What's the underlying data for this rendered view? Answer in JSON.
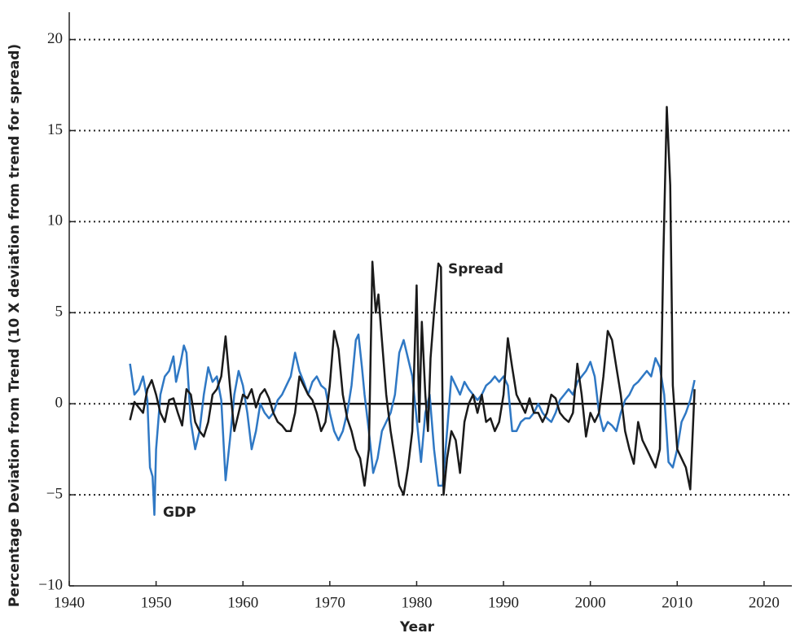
{
  "chart_data": {
    "type": "line",
    "xlabel": "Year",
    "ylabel": "Percentage Deviation from Trend (10 X deviation from trend for spread)",
    "xlim": [
      1940,
      2023.2
    ],
    "ylim": [
      -10,
      21.5
    ],
    "xticks": [
      1940,
      1950,
      1960,
      1970,
      1980,
      1990,
      2000,
      2010,
      2020
    ],
    "yticks": [
      {
        "value": -10,
        "label": "−10"
      },
      {
        "value": -5,
        "label": "−5"
      },
      0,
      5,
      10,
      15,
      20
    ],
    "grid": true,
    "annotations": [
      {
        "text": "Spread"
      },
      {
        "text": "GDP"
      }
    ],
    "series": [
      {
        "name": "GDP",
        "color": "#2f78c4",
        "x": [
          1947,
          1947.5,
          1948,
          1948.5,
          1949,
          1949.3,
          1949.6,
          1949.8,
          1950,
          1950.5,
          1951,
          1951.5,
          1952,
          1952.3,
          1952.8,
          1953.2,
          1953.5,
          1954,
          1954.5,
          1955,
          1955.5,
          1956,
          1956.5,
          1957,
          1957.5,
          1958,
          1958.5,
          1959,
          1959.5,
          1960,
          1960.5,
          1961,
          1961.5,
          1962,
          1962.5,
          1963,
          1963.5,
          1964,
          1964.5,
          1965,
          1965.5,
          1966,
          1966.5,
          1967,
          1967.5,
          1968,
          1968.5,
          1969,
          1969.5,
          1970,
          1970.5,
          1971,
          1971.5,
          1972,
          1972.5,
          1973,
          1973.3,
          1973.7,
          1974,
          1974.5,
          1975,
          1975.5,
          1976,
          1976.5,
          1977,
          1977.5,
          1978,
          1978.5,
          1979,
          1979.5,
          1980,
          1980.5,
          1981,
          1981.5,
          1982,
          1982.5,
          1983,
          1983.5,
          1984,
          1984.5,
          1985,
          1985.5,
          1986,
          1986.5,
          1987,
          1987.5,
          1988,
          1988.5,
          1989,
          1989.5,
          1990,
          1990.5,
          1991,
          1991.5,
          1992,
          1992.5,
          1993,
          1993.5,
          1994,
          1994.5,
          1995,
          1995.5,
          1996,
          1996.5,
          1997,
          1997.5,
          1998,
          1998.5,
          1999,
          1999.5,
          2000,
          2000.5,
          2001,
          2001.5,
          2002,
          2002.5,
          2003,
          2003.5,
          2004,
          2004.5,
          2005,
          2005.5,
          2006,
          2006.5,
          2007,
          2007.5,
          2008,
          2008.5,
          2009,
          2009.5,
          2010,
          2010.5,
          2011,
          2011.5,
          2012
        ],
        "values": [
          2.2,
          0.5,
          0.8,
          1.5,
          0.2,
          -3.5,
          -4.0,
          -6.1,
          -2.5,
          0.5,
          1.5,
          1.8,
          2.6,
          1.2,
          2.2,
          3.2,
          2.8,
          -1,
          -2.5,
          -1.5,
          0.5,
          2.0,
          1.2,
          1.5,
          0.2,
          -4.2,
          -2.0,
          0.5,
          1.8,
          1.0,
          -0.5,
          -2.5,
          -1.5,
          0,
          -0.5,
          -0.8,
          -0.5,
          0.2,
          0.5,
          1.0,
          1.5,
          2.8,
          1.8,
          1.2,
          0.5,
          1.2,
          1.5,
          1.0,
          0.8,
          -0.5,
          -1.5,
          -2.0,
          -1.5,
          -0.5,
          1.0,
          3.5,
          3.8,
          2.0,
          0.5,
          -1.5,
          -3.8,
          -3.0,
          -1.5,
          -1.0,
          -0.5,
          0.5,
          2.8,
          3.5,
          2.5,
          1.5,
          -0.8,
          -3.2,
          -0.5,
          0.5,
          -2.5,
          -4.5,
          -4.5,
          -1.5,
          1.5,
          1.0,
          0.5,
          1.2,
          0.8,
          0.5,
          0.2,
          0.5,
          1.0,
          1.2,
          1.5,
          1.2,
          1.5,
          1.0,
          -1.5,
          -1.5,
          -1.0,
          -0.8,
          -0.8,
          -0.5,
          0,
          -0.5,
          -0.8,
          -1.0,
          -0.5,
          0.2,
          0.5,
          0.8,
          0.5,
          1.2,
          1.5,
          1.8,
          2.3,
          1.5,
          -0.5,
          -1.5,
          -1.0,
          -1.2,
          -1.5,
          -0.5,
          0.2,
          0.5,
          1.0,
          1.2,
          1.5,
          1.8,
          1.5,
          2.5,
          2.0,
          0.5,
          -3.2,
          -3.5,
          -2.5,
          -1.0,
          -0.5,
          0.2,
          1.3
        ]
      },
      {
        "name": "Spread",
        "color": "#1a1a1a",
        "x": [
          1947,
          1947.5,
          1948,
          1948.5,
          1949,
          1949.5,
          1950,
          1950.5,
          1951,
          1951.5,
          1952,
          1952.5,
          1953,
          1953.5,
          1954,
          1954.5,
          1955,
          1955.5,
          1956,
          1956.5,
          1957,
          1957.5,
          1958,
          1958.5,
          1959,
          1959.5,
          1960,
          1960.5,
          1961,
          1961.5,
          1962,
          1962.5,
          1963,
          1963.5,
          1964,
          1964.5,
          1965,
          1965.5,
          1966,
          1966.5,
          1967,
          1967.5,
          1968,
          1968.5,
          1969,
          1969.5,
          1970,
          1970.5,
          1971,
          1971.5,
          1972,
          1972.5,
          1973,
          1973.5,
          1974,
          1974.5,
          1974.9,
          1975.3,
          1975.6,
          1976,
          1976.5,
          1977,
          1977.5,
          1978,
          1978.5,
          1979,
          1979.5,
          1980,
          1980.3,
          1980.6,
          1981,
          1981.3,
          1981.6,
          1982,
          1982.5,
          1982.8,
          1983.1,
          1983.5,
          1984,
          1984.5,
          1985,
          1985.5,
          1986,
          1986.5,
          1987,
          1987.5,
          1988,
          1988.5,
          1989,
          1989.5,
          1990,
          1990.5,
          1991,
          1991.5,
          1992,
          1992.5,
          1993,
          1993.5,
          1994,
          1994.5,
          1995,
          1995.5,
          1996,
          1996.5,
          1997,
          1997.5,
          1998,
          1998.5,
          1999,
          1999.5,
          2000,
          2000.5,
          2001,
          2001.5,
          2002,
          2002.5,
          2003,
          2003.5,
          2004,
          2004.5,
          2005,
          2005.5,
          2006,
          2006.5,
          2007,
          2007.5,
          2008,
          2008.4,
          2008.8,
          2009.2,
          2009.5,
          2010,
          2010.5,
          2011,
          2011.5,
          2012
        ],
        "values": [
          -0.9,
          0.1,
          -0.2,
          -0.5,
          0.8,
          1.3,
          0.5,
          -0.5,
          -1.0,
          0.2,
          0.3,
          -0.5,
          -1.2,
          0.8,
          0.5,
          -1.0,
          -1.5,
          -1.8,
          -1.0,
          0.5,
          0.8,
          1.5,
          3.7,
          1.0,
          -1.5,
          -0.5,
          0.5,
          0.3,
          0.8,
          -0.2,
          0.5,
          0.8,
          0.3,
          -0.5,
          -1.0,
          -1.2,
          -1.5,
          -1.5,
          -0.5,
          1.5,
          1.0,
          0.5,
          0.2,
          -0.5,
          -1.5,
          -1.0,
          1.0,
          4.0,
          3.0,
          0.5,
          -0.8,
          -1.5,
          -2.5,
          -3.0,
          -4.5,
          -2.5,
          7.8,
          5.0,
          6.0,
          3.5,
          0.5,
          -1.5,
          -3.0,
          -4.5,
          -5.0,
          -3.5,
          -1.5,
          6.5,
          -1.0,
          4.5,
          0.5,
          -1.5,
          2.5,
          5.0,
          7.7,
          7.5,
          -5.0,
          -3.0,
          -1.5,
          -2.0,
          -3.8,
          -1.0,
          0,
          0.5,
          -0.5,
          0.5,
          -1.0,
          -0.8,
          -1.5,
          -1.0,
          0.5,
          3.6,
          2.0,
          0.5,
          0,
          -0.5,
          0.3,
          -0.5,
          -0.5,
          -1.0,
          -0.5,
          0.5,
          0.3,
          -0.5,
          -0.8,
          -1.0,
          -0.5,
          2.2,
          0.5,
          -1.8,
          -0.5,
          -1.0,
          -0.5,
          1.5,
          4.0,
          3.5,
          2.0,
          0.5,
          -1.5,
          -2.5,
          -3.3,
          -1.0,
          -2.0,
          -2.5,
          -3.0,
          -3.5,
          -2.5,
          8.0,
          16.3,
          12.0,
          1.0,
          -2.5,
          -3.0,
          -3.5,
          -4.7,
          0.8
        ]
      }
    ]
  }
}
